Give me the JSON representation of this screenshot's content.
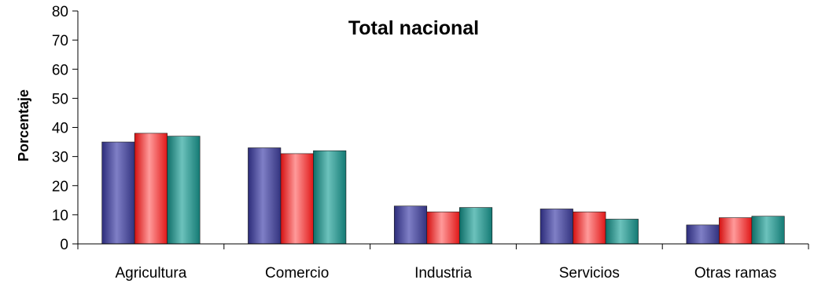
{
  "chart_data": {
    "type": "bar",
    "title": "Total nacional",
    "xlabel": "",
    "ylabel": "Porcentaje",
    "ylim": [
      0,
      80
    ],
    "yticks": [
      0,
      10,
      20,
      30,
      40,
      50,
      60,
      70,
      80
    ],
    "grid": false,
    "legend": "none",
    "categories": [
      "Agricultura",
      "Comercio",
      "Industria",
      "Servicios",
      "Otras ramas"
    ],
    "series": [
      {
        "color": "#5b5ba8",
        "values": [
          35,
          33,
          13,
          12,
          6.5
        ]
      },
      {
        "color": "#ff4a4a",
        "values": [
          38,
          31,
          11,
          11,
          9
        ]
      },
      {
        "color": "#2f9a94",
        "values": [
          37,
          32,
          12.5,
          8.5,
          9.5
        ]
      }
    ]
  }
}
